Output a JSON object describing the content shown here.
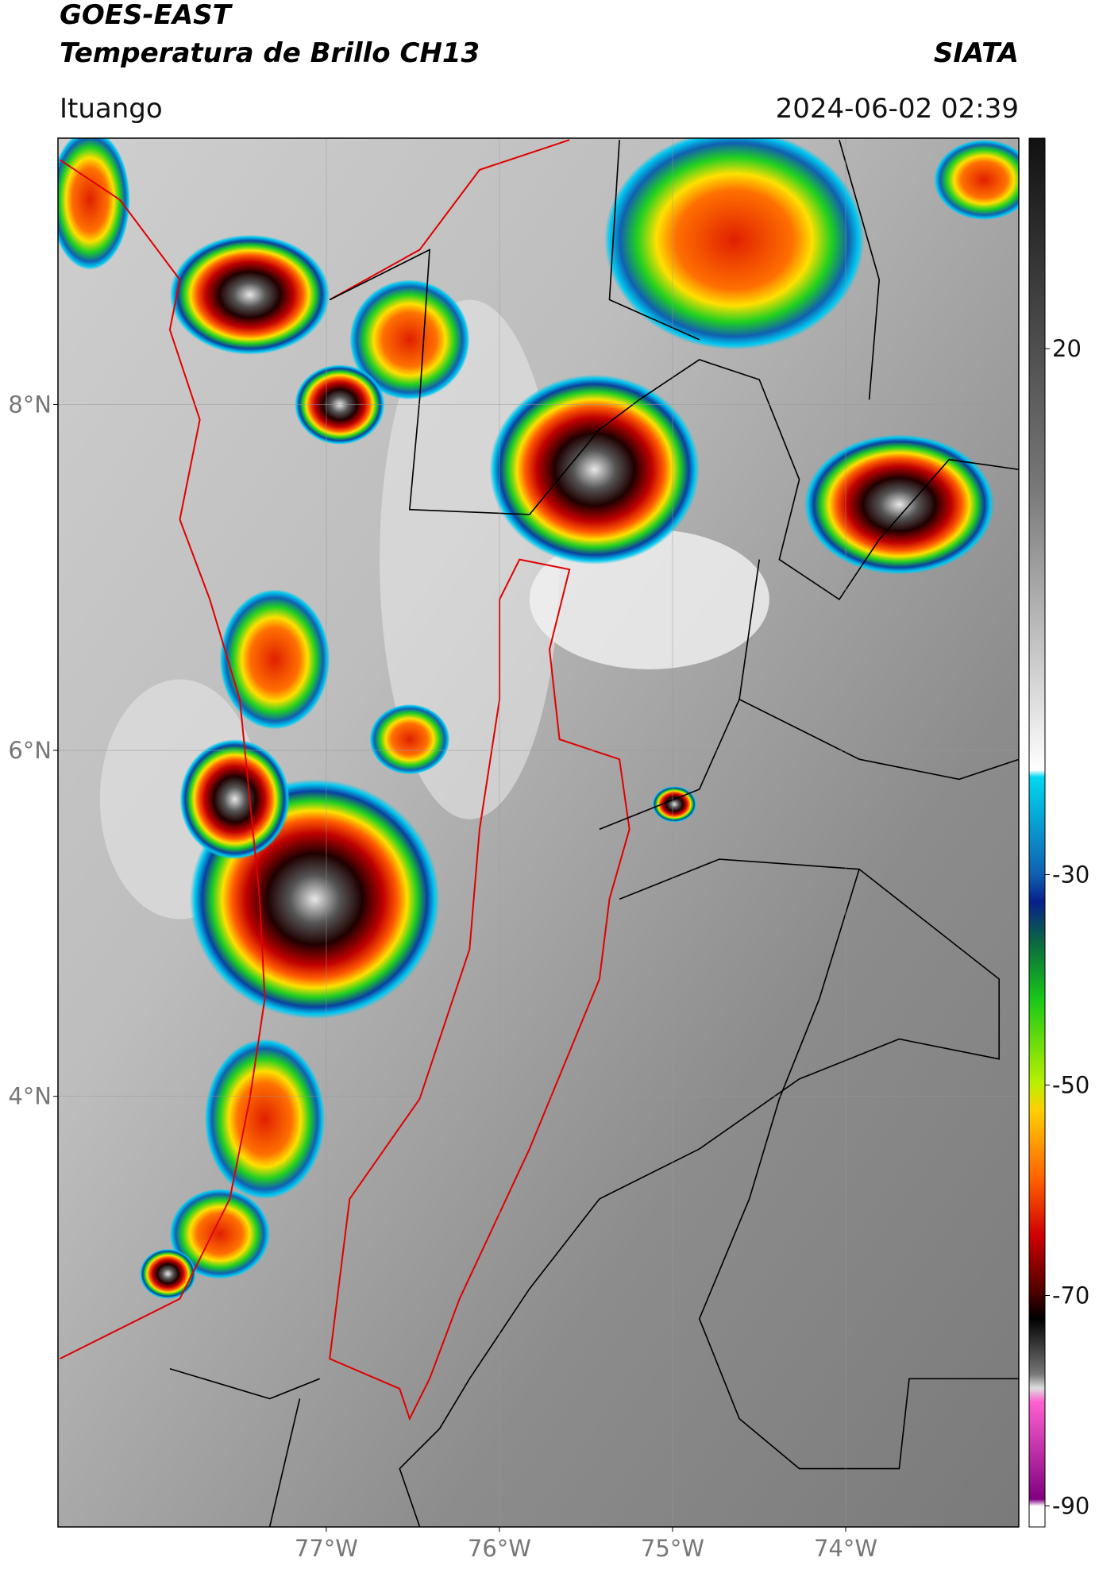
{
  "header": {
    "title_line1": "GOES-EAST",
    "title_line2": "Temperatura de Brillo CH13",
    "brand": "SIATA",
    "location": "Ituango",
    "timestamp": "2024-06-02 02:39"
  },
  "map": {
    "xlim": [
      -78.55,
      -73.0
    ],
    "ylim": [
      1.51,
      9.54
    ],
    "xticks": [
      {
        "value": -77,
        "label": "77°W"
      },
      {
        "value": -76,
        "label": "76°W"
      },
      {
        "value": -75,
        "label": "75°W"
      },
      {
        "value": -74,
        "label": "74°W"
      }
    ],
    "yticks": [
      {
        "value": 8,
        "label": "8°N"
      },
      {
        "value": 6,
        "label": "6°N"
      },
      {
        "value": 4,
        "label": "4°N"
      }
    ],
    "grid": true
  },
  "colorbar": {
    "lim": [
      -92,
      40
    ],
    "ticks": [
      20,
      -30,
      -50,
      -70,
      -90
    ]
  }
}
